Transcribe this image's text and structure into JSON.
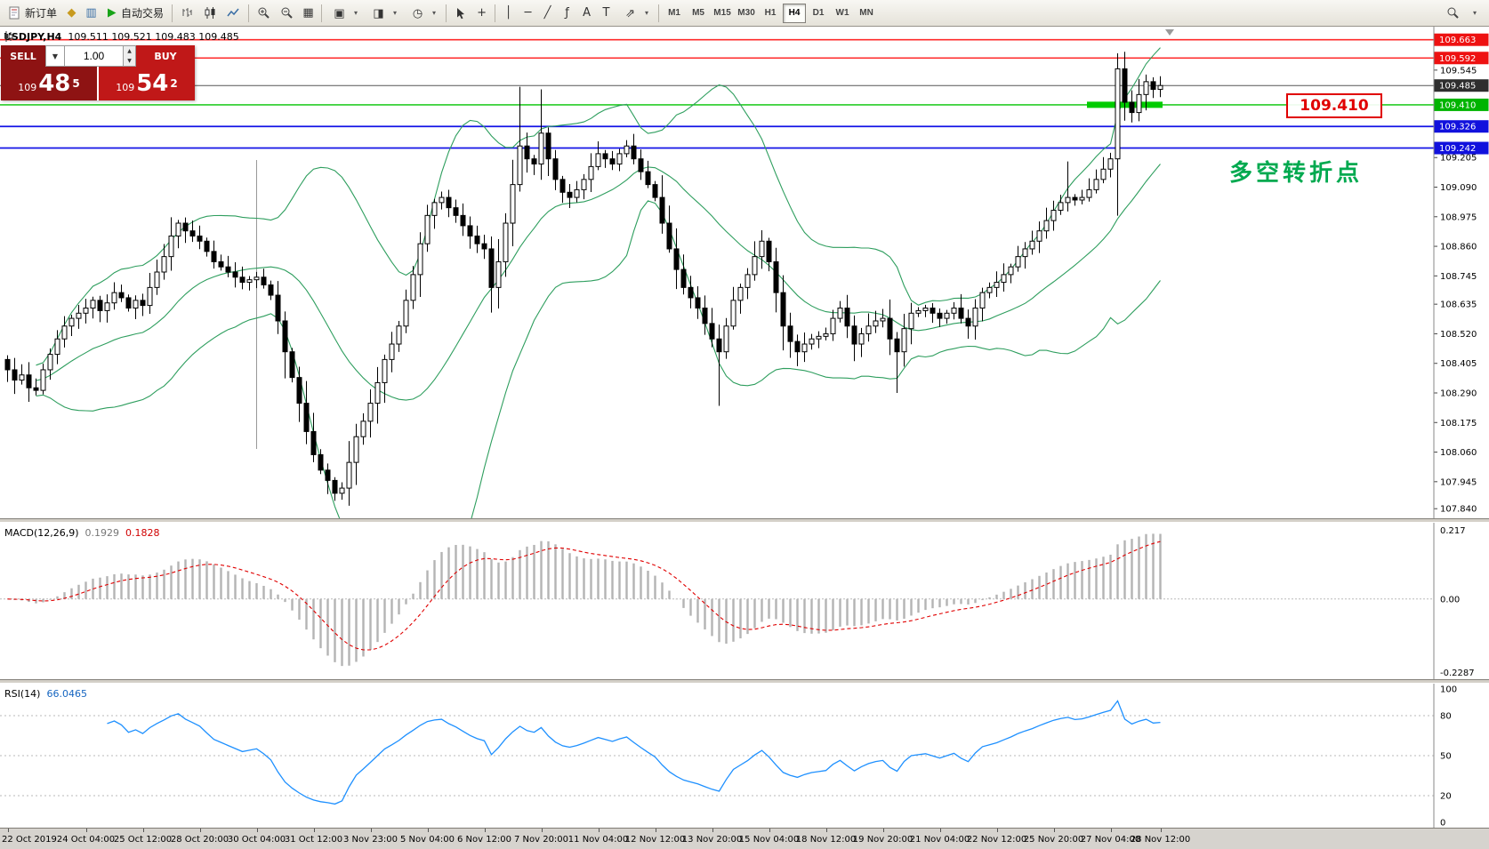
{
  "toolbar": {
    "new_order_label": "新订单",
    "autotrading_label": "自动交易",
    "timeframes": [
      "M1",
      "M5",
      "M15",
      "M30",
      "H1",
      "H4",
      "D1",
      "W1",
      "MN"
    ],
    "active_timeframe": "H4"
  },
  "icon_glyphs": {
    "profiles": "◆",
    "charts": "▥",
    "grid": "▦",
    "windows": "▣",
    "templates": "◨",
    "period": "◷",
    "crosshair": "+",
    "vertical_line": "│",
    "horizontal_line": "─",
    "trendline": "╱",
    "fibonacci": "ƒ",
    "text": "A",
    "label": "T",
    "arrows": "⇗",
    "dropdown": "▾",
    "spin_up": "▲",
    "spin_down": "▼"
  },
  "chart": {
    "symbol_period": "USDJPY,H4",
    "ohlc": "109.511 109.521 109.483 109.485",
    "annotation": "多空转折点",
    "callout": "109.410",
    "axis_ticks": [
      "109.545",
      "109.205",
      "109.090",
      "108.975",
      "108.860",
      "108.745",
      "108.635",
      "108.520",
      "108.405",
      "108.290",
      "108.175",
      "108.060",
      "107.945",
      "107.840"
    ]
  },
  "one_click": {
    "sell_label": "SELL",
    "buy_label": "BUY",
    "volume": "1.00",
    "sell_price": {
      "small": "109",
      "big": "48",
      "sup": "5"
    },
    "buy_price": {
      "small": "109",
      "big": "54",
      "sup": "2"
    }
  },
  "macd": {
    "name": "MACD(12,26,9)",
    "main_value": "0.1929",
    "signal_value": "0.1828",
    "axis": {
      "max": "0.217",
      "zero": "0.00",
      "min": "-0.2287"
    }
  },
  "rsi": {
    "name": "RSI(14)",
    "value": "66.0465",
    "axis": [
      {
        "v": 100,
        "label": "100"
      },
      {
        "v": 80,
        "label": "80"
      },
      {
        "v": 50,
        "label": "50"
      },
      {
        "v": 20,
        "label": "20"
      },
      {
        "v": 0,
        "label": "0"
      }
    ]
  },
  "chart_data": {
    "type": "candlestick",
    "symbol": "USDJPY",
    "period": "H4",
    "y_range": [
      107.82,
      109.7
    ],
    "current_price": 109.485,
    "current_price_label": "109.485",
    "vline_index": 35,
    "green_segment": {
      "from": 152,
      "to": 162,
      "price": 109.41,
      "color": "#00cc00"
    },
    "levels": [
      {
        "value": 109.663,
        "label": "109.663",
        "line": "#ff2a2a",
        "box": "#ee1111",
        "width": 1.6
      },
      {
        "value": 109.592,
        "label": "109.592",
        "line": "#ff2a2a",
        "box": "#ee1111",
        "width": 1.6
      },
      {
        "value": 109.41,
        "label": "109.410",
        "line": "#00c400",
        "box": "#00b400",
        "width": 1.4
      },
      {
        "value": 109.326,
        "label": "109.326",
        "line": "#1414e6",
        "box": "#1111dd",
        "width": 1.8
      },
      {
        "value": 109.242,
        "label": "109.242",
        "line": "#1414e6",
        "box": "#1111dd",
        "width": 1.8
      }
    ],
    "closes": [
      108.38,
      108.34,
      108.36,
      108.31,
      108.3,
      108.38,
      108.44,
      108.5,
      108.55,
      108.58,
      108.6,
      108.62,
      108.65,
      108.61,
      108.64,
      108.68,
      108.66,
      108.62,
      108.65,
      108.63,
      108.7,
      108.76,
      108.82,
      108.9,
      108.95,
      108.92,
      108.9,
      108.88,
      108.84,
      108.8,
      108.78,
      108.76,
      108.74,
      108.72,
      108.73,
      108.74,
      108.71,
      108.67,
      108.57,
      108.45,
      108.35,
      108.25,
      108.14,
      108.05,
      107.99,
      107.95,
      107.9,
      107.92,
      108.02,
      108.12,
      108.18,
      108.25,
      108.33,
      108.42,
      108.48,
      108.55,
      108.65,
      108.75,
      108.87,
      108.98,
      109.03,
      109.05,
      109.01,
      108.98,
      108.94,
      108.9,
      108.87,
      108.85,
      108.7,
      108.8,
      108.95,
      109.1,
      109.25,
      109.2,
      109.18,
      109.3,
      109.2,
      109.12,
      109.07,
      109.05,
      109.08,
      109.12,
      109.17,
      109.22,
      109.2,
      109.18,
      109.22,
      109.25,
      109.2,
      109.15,
      109.1,
      109.05,
      108.95,
      108.85,
      108.77,
      108.7,
      108.66,
      108.62,
      108.56,
      108.5,
      108.45,
      108.55,
      108.65,
      108.7,
      108.75,
      108.82,
      108.88,
      108.8,
      108.68,
      108.55,
      108.49,
      108.45,
      108.48,
      108.5,
      108.51,
      108.52,
      108.58,
      108.62,
      108.55,
      108.48,
      108.52,
      108.55,
      108.57,
      108.58,
      108.5,
      108.45,
      108.54,
      108.6,
      108.61,
      108.62,
      108.6,
      108.58,
      108.6,
      108.62,
      108.58,
      108.55,
      108.62,
      108.68,
      108.7,
      108.72,
      108.75,
      108.78,
      108.82,
      108.85,
      108.88,
      108.92,
      108.96,
      109.0,
      109.03,
      109.05,
      109.04,
      109.05,
      109.08,
      109.12,
      109.16,
      109.2,
      109.55,
      109.42,
      109.38,
      109.45,
      109.5,
      109.47,
      109.485
    ],
    "wick_overrides": {
      "47": {
        "low": 107.875
      },
      "72": {
        "high": 109.48
      },
      "75": {
        "high": 109.47
      },
      "100": {
        "low": 108.24
      },
      "125": {
        "low": 108.29
      },
      "149": {
        "high": 109.19
      },
      "156": {
        "high": 109.61
      },
      "162": {
        "high": 109.521,
        "low": 109.44
      }
    },
    "x_labels": [
      {
        "i": 0,
        "label": "22 Oct 2019"
      },
      {
        "i": 11,
        "label": "24 Oct 04:00"
      },
      {
        "i": 19,
        "label": "25 Oct 12:00"
      },
      {
        "i": 27,
        "label": "28 Oct 20:00"
      },
      {
        "i": 35,
        "label": "30 Oct 04:00"
      },
      {
        "i": 43,
        "label": "31 Oct 12:00"
      },
      {
        "i": 51,
        "label": "3 Nov 23:00"
      },
      {
        "i": 59,
        "label": "5 Nov 04:00"
      },
      {
        "i": 67,
        "label": "6 Nov 12:00"
      },
      {
        "i": 75,
        "label": "7 Nov 20:00"
      },
      {
        "i": 83,
        "label": "11 Nov 04:00"
      },
      {
        "i": 91,
        "label": "12 Nov 12:00"
      },
      {
        "i": 99,
        "label": "13 Nov 20:00"
      },
      {
        "i": 107,
        "label": "15 Nov 04:00"
      },
      {
        "i": 115,
        "label": "18 Nov 12:00"
      },
      {
        "i": 123,
        "label": "19 Nov 20:00"
      },
      {
        "i": 131,
        "label": "21 Nov 04:00"
      },
      {
        "i": 139,
        "label": "22 Nov 12:00"
      },
      {
        "i": 147,
        "label": "25 Nov 20:00"
      },
      {
        "i": 155,
        "label": "27 Nov 04:00"
      },
      {
        "i": 162,
        "label": "28 Nov 12:00"
      }
    ],
    "indicators": {
      "bollinger": {
        "period": 20,
        "deviation": 2,
        "color": "#2e9e5e"
      },
      "macd": {
        "fast": 12,
        "slow": 26,
        "signal": 9,
        "range": [
          -0.2287,
          0.217
        ],
        "bar_color": "#b4b4b4",
        "signal_color": "#e00000"
      },
      "rsi": {
        "period": 14,
        "levels": [
          80,
          50,
          20
        ],
        "color": "#1e90ff"
      }
    }
  }
}
